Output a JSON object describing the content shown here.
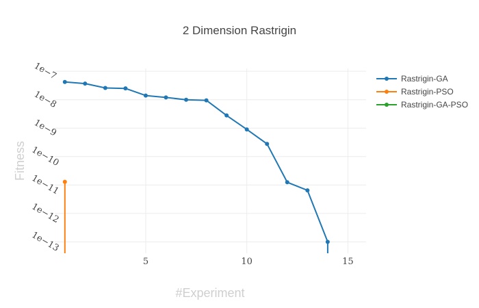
{
  "chart_data": {
    "type": "line",
    "title": "2 Dimension Rastrigin",
    "xlabel": "#Experiment",
    "ylabel": "Fitness",
    "x_ticks": [
      5,
      10,
      15
    ],
    "x_tick_labels": [
      "5",
      "10",
      "15"
    ],
    "xlim": [
      0.5,
      15.9
    ],
    "y_scale": "log",
    "y_ticks": [
      1e-07,
      1e-08,
      1e-09,
      1e-10,
      1e-11,
      1e-12,
      1e-13
    ],
    "y_tick_labels": [
      "1e−7",
      "1e−8",
      "1e−9",
      "1e−10",
      "1e−11",
      "1e−12",
      "1e−13"
    ],
    "ylim_log10": [
      -13.4,
      -6.9
    ],
    "grid": true,
    "legend_position": "top-right",
    "series": [
      {
        "name": "Rastrigin-GA",
        "color": "#1f77b4",
        "x": [
          1,
          2,
          3,
          4,
          5,
          6,
          7,
          8,
          9,
          10,
          11,
          12,
          13,
          14
        ],
        "y": [
          4.2e-08,
          3.7e-08,
          2.6e-08,
          2.5e-08,
          1.4e-08,
          1.2e-08,
          1e-08,
          9.5e-09,
          2.8e-09,
          9e-10,
          2.8e-10,
          1.25e-11,
          6.5e-12,
          1e-13
        ]
      },
      {
        "name": "Rastrigin-PSO",
        "color": "#ff7f0e",
        "x": [
          1,
          1
        ],
        "y": [
          1.3e-11,
          1e-15
        ]
      },
      {
        "name": "Rastrigin-GA-PSO",
        "color": "#2ca02c",
        "x": [],
        "y": []
      }
    ],
    "ga_tail": {
      "x": 14,
      "y": 1e-15
    }
  }
}
